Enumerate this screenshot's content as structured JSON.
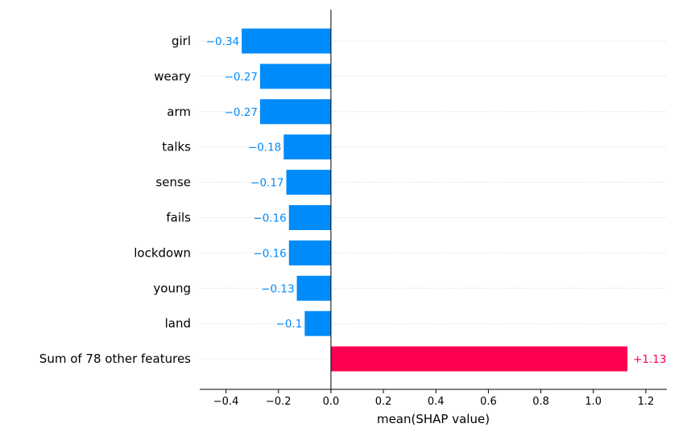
{
  "chart_data": {
    "type": "bar",
    "orientation": "horizontal",
    "categories": [
      "girl",
      "weary",
      "arm",
      "talks",
      "sense",
      "fails",
      "lockdown",
      "young",
      "land",
      "Sum of 78 other features"
    ],
    "values": [
      -0.34,
      -0.27,
      -0.27,
      -0.18,
      -0.17,
      -0.16,
      -0.16,
      -0.13,
      -0.1,
      1.13
    ],
    "value_labels": [
      "−0.34",
      "−0.27",
      "−0.27",
      "−0.18",
      "−0.17",
      "−0.16",
      "−0.16",
      "−0.13",
      "−0.1",
      "+1.13"
    ],
    "xlabel": "mean(SHAP value)",
    "ylabel": "",
    "title": "",
    "xlim": [
      -0.5,
      1.28
    ],
    "xticks": [
      -0.4,
      -0.2,
      0.0,
      0.2,
      0.4,
      0.6,
      0.8,
      1.0,
      1.2
    ],
    "xtick_labels": [
      "−0.4",
      "−0.2",
      "0.0",
      "0.2",
      "0.4",
      "0.6",
      "0.8",
      "1.0",
      "1.2"
    ],
    "colors": {
      "negative": "#008bfb",
      "positive": "#ff0051",
      "zero_line": "#000000",
      "grid": "#cccccc"
    },
    "grid": "horizontal dotted"
  }
}
